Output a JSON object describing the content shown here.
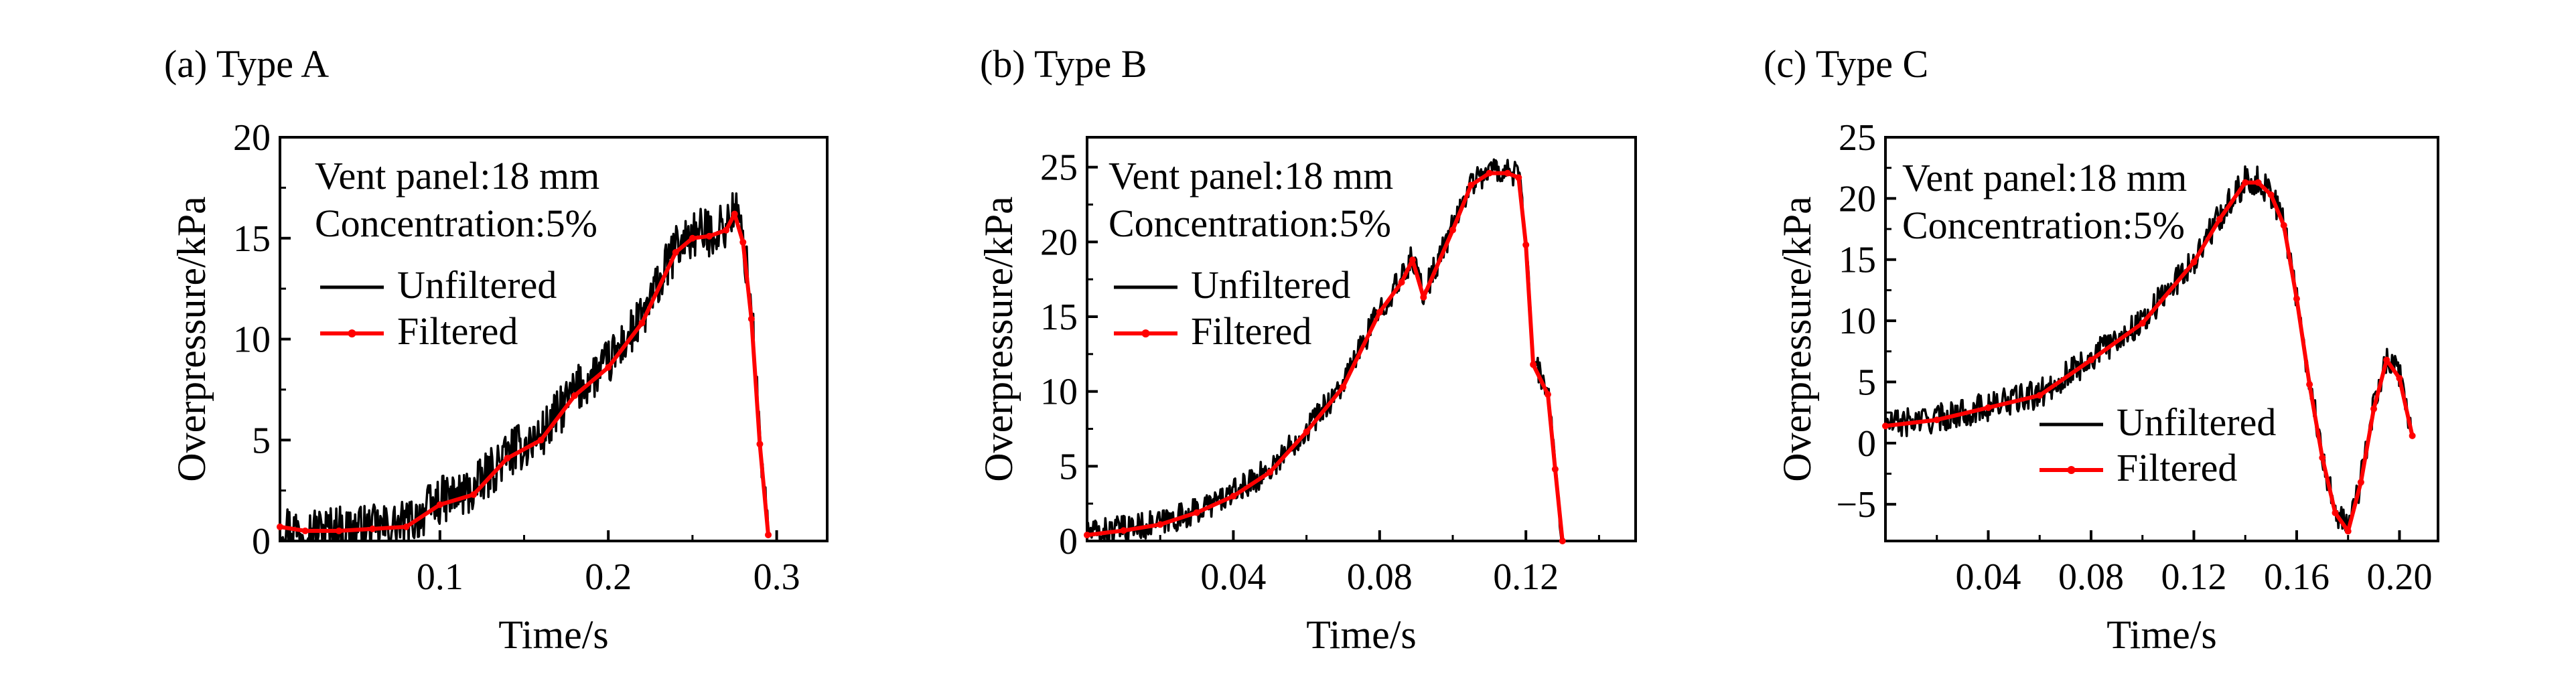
{
  "chart_data": [
    {
      "type": "line",
      "panel_label": "(a) Type A",
      "xlabel": "Time/s",
      "ylabel": "Overpressure/kPa",
      "xlim": [
        0.005,
        0.33
      ],
      "ylim": [
        0,
        20
      ],
      "xticks": [
        0.1,
        0.2,
        0.3
      ],
      "xtick_labels": [
        "0.1",
        "0.2",
        "0.3"
      ],
      "yticks": [
        0,
        5,
        10,
        15,
        20
      ],
      "ytick_labels": [
        "0",
        "5",
        "10",
        "15",
        "20"
      ],
      "annotations": [
        "Vent panel:18 mm",
        "Concentration:5%"
      ],
      "legend": [
        "Unfiltered",
        "Filtered"
      ],
      "legend_position": "middle-left",
      "series": [
        {
          "name": "Unfiltered",
          "color": "#000000",
          "noise_amplitude": 1.2,
          "x": [
            0.005,
            0.02,
            0.04,
            0.06,
            0.08,
            0.1,
            0.12,
            0.14,
            0.16,
            0.18,
            0.2,
            0.22,
            0.24,
            0.25,
            0.26,
            0.27,
            0.275,
            0.28,
            0.285,
            0.29,
            0.295
          ],
          "y": [
            0.8,
            0.5,
            0.6,
            0.6,
            0.8,
            2.0,
            2.5,
            4.3,
            5.2,
            7.4,
            8.8,
            11.0,
            14.5,
            15.2,
            15.3,
            15.6,
            16.5,
            15.0,
            11.5,
            5.0,
            0.5
          ]
        },
        {
          "name": "Filtered",
          "color": "#ff0000",
          "x": [
            0.005,
            0.02,
            0.04,
            0.06,
            0.08,
            0.1,
            0.12,
            0.14,
            0.16,
            0.18,
            0.2,
            0.22,
            0.24,
            0.25,
            0.26,
            0.27,
            0.275,
            0.28,
            0.285,
            0.29,
            0.295
          ],
          "y": [
            0.7,
            0.5,
            0.5,
            0.6,
            0.7,
            1.8,
            2.3,
            4.1,
            5.0,
            7.2,
            8.6,
            10.8,
            14.3,
            15.0,
            15.1,
            15.4,
            16.2,
            14.8,
            11.0,
            4.8,
            0.3
          ]
        }
      ]
    },
    {
      "type": "line",
      "panel_label": "(b) Type B",
      "xlabel": "Time/s",
      "ylabel": "Overpressure/kPa",
      "xlim": [
        0.0,
        0.15
      ],
      "ylim": [
        0,
        27
      ],
      "xticks": [
        0.04,
        0.08,
        0.12
      ],
      "xtick_labels": [
        "0.04",
        "0.08",
        "0.12"
      ],
      "yticks": [
        0,
        5,
        10,
        15,
        20,
        25
      ],
      "ytick_labels": [
        "0",
        "5",
        "10",
        "15",
        "20",
        "25"
      ],
      "annotations": [
        "Vent panel:18 mm",
        "Concentration:5%"
      ],
      "legend": [
        "Unfiltered",
        "Filtered"
      ],
      "legend_position": "upper-left",
      "series": [
        {
          "name": "Unfiltered",
          "color": "#000000",
          "noise_amplitude": 0.9,
          "x": [
            0.0,
            0.01,
            0.02,
            0.03,
            0.04,
            0.05,
            0.06,
            0.07,
            0.08,
            0.086,
            0.089,
            0.092,
            0.1,
            0.105,
            0.11,
            0.115,
            0.118,
            0.12,
            0.122,
            0.126,
            0.128,
            0.13
          ],
          "y": [
            0.5,
            0.8,
            1.2,
            2.0,
            3.2,
            4.8,
            7.5,
            10.5,
            15.5,
            17.5,
            19.0,
            16.5,
            21.0,
            24.0,
            24.8,
            24.8,
            24.5,
            20.0,
            12.0,
            10.0,
            5.0,
            0.0
          ]
        },
        {
          "name": "Filtered",
          "color": "#ff0000",
          "x": [
            0.0,
            0.01,
            0.02,
            0.03,
            0.04,
            0.05,
            0.06,
            0.07,
            0.08,
            0.086,
            0.089,
            0.092,
            0.1,
            0.105,
            0.11,
            0.115,
            0.118,
            0.12,
            0.122,
            0.126,
            0.128,
            0.13
          ],
          "y": [
            0.4,
            0.7,
            1.1,
            1.9,
            3.0,
            4.6,
            7.3,
            10.3,
            15.3,
            17.3,
            18.8,
            16.3,
            20.8,
            23.8,
            24.6,
            24.6,
            24.3,
            19.8,
            11.8,
            9.8,
            4.8,
            0.0
          ]
        }
      ]
    },
    {
      "type": "line",
      "panel_label": "(c) Type C",
      "xlabel": "Time/s",
      "ylabel": "Overpressure/kPa",
      "xlim": [
        0.0,
        0.215
      ],
      "ylim": [
        -8,
        25
      ],
      "xticks": [
        0.04,
        0.08,
        0.12,
        0.16,
        0.2
      ],
      "xtick_labels": [
        "0.04",
        "0.08",
        "0.12",
        "0.16",
        "0.20"
      ],
      "yticks": [
        -5,
        0,
        5,
        10,
        15,
        20,
        25
      ],
      "ytick_labels": [
        "−5",
        "0",
        "5",
        "10",
        "15",
        "20",
        "25"
      ],
      "annotations": [
        "Vent panel:18 mm",
        "Concentration:5%"
      ],
      "legend": [
        "Unfiltered",
        "Filtered"
      ],
      "legend_position": "lower-right",
      "series": [
        {
          "name": "Unfiltered",
          "color": "#000000",
          "noise_amplitude": 1.2,
          "x": [
            0.0,
            0.02,
            0.04,
            0.06,
            0.08,
            0.1,
            0.12,
            0.13,
            0.14,
            0.145,
            0.15,
            0.155,
            0.16,
            0.165,
            0.17,
            0.175,
            0.18,
            0.185,
            0.19,
            0.195,
            0.2,
            0.205
          ],
          "y": [
            1.5,
            2.0,
            3.0,
            4.0,
            7.0,
            10.0,
            15.0,
            18.5,
            21.5,
            21.5,
            20.5,
            18.0,
            12.0,
            5.0,
            -1.0,
            -5.5,
            -7.0,
            -3.0,
            3.0,
            7.0,
            5.5,
            0.8
          ]
        },
        {
          "name": "Filtered",
          "color": "#ff0000",
          "x": [
            0.0,
            0.02,
            0.04,
            0.06,
            0.08,
            0.1,
            0.12,
            0.13,
            0.14,
            0.145,
            0.15,
            0.155,
            0.16,
            0.165,
            0.17,
            0.175,
            0.18,
            0.185,
            0.19,
            0.195,
            0.2,
            0.205
          ],
          "y": [
            1.4,
            1.9,
            2.9,
            3.9,
            6.8,
            9.8,
            14.8,
            18.3,
            21.3,
            21.3,
            20.3,
            17.8,
            11.8,
            4.8,
            -1.2,
            -5.7,
            -7.2,
            -3.2,
            2.8,
            6.8,
            5.3,
            0.6
          ]
        }
      ]
    }
  ]
}
